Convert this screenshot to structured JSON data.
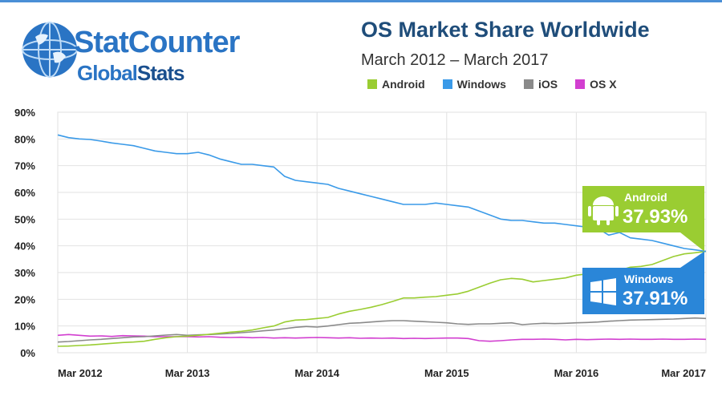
{
  "brand": {
    "name_part1": "Stat",
    "name_part2": "Counter",
    "sub_part1": "Global",
    "sub_part2": "Stats"
  },
  "colors": {
    "android": "#9acd32",
    "windows": "#3a9ae8",
    "ios": "#8a8a8a",
    "osx": "#d23fd0",
    "brand": "#2a74c4"
  },
  "chart_data": {
    "type": "line",
    "title": "OS Market Share Worldwide",
    "subtitle": "March 2012 – March 2017",
    "ylim": [
      0,
      90
    ],
    "y_ticks": [
      "0%",
      "10%",
      "20%",
      "30%",
      "40%",
      "50%",
      "60%",
      "70%",
      "80%",
      "90%"
    ],
    "x_ticks": [
      "Mar 2012",
      "Mar 2013",
      "Mar 2014",
      "Mar 2015",
      "Mar 2016",
      "Mar 2017"
    ],
    "grid": true,
    "legend_position": "top",
    "x": [
      "2012-03",
      "2012-04",
      "2012-05",
      "2012-06",
      "2012-07",
      "2012-08",
      "2012-09",
      "2012-10",
      "2012-11",
      "2012-12",
      "2013-01",
      "2013-02",
      "2013-03",
      "2013-04",
      "2013-05",
      "2013-06",
      "2013-07",
      "2013-08",
      "2013-09",
      "2013-10",
      "2013-11",
      "2013-12",
      "2014-01",
      "2014-02",
      "2014-03",
      "2014-04",
      "2014-05",
      "2014-06",
      "2014-07",
      "2014-08",
      "2014-09",
      "2014-10",
      "2014-11",
      "2014-12",
      "2015-01",
      "2015-02",
      "2015-03",
      "2015-04",
      "2015-05",
      "2015-06",
      "2015-07",
      "2015-08",
      "2015-09",
      "2015-10",
      "2015-11",
      "2015-12",
      "2016-01",
      "2016-02",
      "2016-03",
      "2016-04",
      "2016-05",
      "2016-06",
      "2016-07",
      "2016-08",
      "2016-09",
      "2016-10",
      "2016-11",
      "2016-12",
      "2017-01",
      "2017-02",
      "2017-03"
    ],
    "series": [
      {
        "name": "Android",
        "color": "#9acd32",
        "values": [
          2.4,
          2.5,
          2.7,
          2.9,
          3.2,
          3.5,
          3.8,
          4.0,
          4.3,
          5.0,
          5.6,
          6.0,
          6.2,
          6.5,
          6.9,
          7.3,
          7.7,
          8.0,
          8.5,
          9.3,
          10.0,
          11.5,
          12.2,
          12.4,
          12.8,
          13.2,
          14.5,
          15.5,
          16.2,
          17.0,
          18.0,
          19.2,
          20.5,
          20.5,
          20.8,
          21.0,
          21.5,
          22.0,
          23.0,
          24.5,
          26.0,
          27.3,
          27.8,
          27.5,
          26.5,
          27.0,
          27.5,
          28.0,
          29.0,
          29.5,
          30.0,
          31.0,
          30.8,
          32.0,
          32.3,
          33.0,
          34.5,
          36.0,
          37.0,
          37.4,
          37.93
        ]
      },
      {
        "name": "Windows",
        "color": "#3a9ae8",
        "values": [
          81.5,
          80.5,
          80.0,
          79.8,
          79.2,
          78.5,
          78.0,
          77.5,
          76.5,
          75.5,
          75.0,
          74.5,
          74.5,
          75.0,
          74.0,
          72.5,
          71.5,
          70.5,
          70.5,
          70.0,
          69.5,
          66.0,
          64.5,
          64.0,
          63.5,
          63.0,
          61.5,
          60.5,
          59.5,
          58.5,
          57.5,
          56.5,
          55.5,
          55.5,
          55.5,
          56.0,
          55.5,
          55.0,
          54.5,
          53.0,
          51.5,
          50.0,
          49.5,
          49.5,
          49.0,
          48.5,
          48.5,
          48.0,
          47.5,
          47.0,
          46.5,
          44.0,
          45.0,
          43.0,
          42.5,
          42.0,
          41.0,
          40.0,
          39.0,
          38.5,
          37.91
        ]
      },
      {
        "name": "iOS",
        "color": "#8a8a8a",
        "values": [
          4.0,
          4.2,
          4.5,
          4.8,
          5.0,
          5.3,
          5.6,
          5.9,
          6.0,
          6.3,
          6.6,
          6.8,
          6.5,
          6.7,
          6.8,
          7.0,
          7.2,
          7.5,
          7.8,
          8.2,
          8.5,
          9.0,
          9.5,
          9.8,
          9.6,
          10.0,
          10.5,
          11.0,
          11.2,
          11.5,
          11.8,
          12.0,
          12.0,
          11.8,
          11.6,
          11.4,
          11.2,
          10.8,
          10.6,
          10.8,
          10.8,
          11.0,
          11.2,
          10.5,
          10.8,
          11.0,
          10.9,
          11.0,
          11.2,
          11.3,
          11.5,
          11.8,
          12.0,
          12.2,
          12.3,
          12.4,
          12.5,
          12.6,
          12.8,
          13.0,
          12.8
        ]
      },
      {
        "name": "OS X",
        "color": "#d23fd0",
        "values": [
          6.5,
          6.8,
          6.5,
          6.2,
          6.3,
          6.1,
          6.4,
          6.3,
          6.2,
          6.0,
          6.0,
          6.0,
          6.0,
          5.9,
          6.0,
          5.8,
          5.7,
          5.8,
          5.6,
          5.7,
          5.5,
          5.6,
          5.5,
          5.6,
          5.7,
          5.6,
          5.5,
          5.6,
          5.4,
          5.5,
          5.4,
          5.5,
          5.3,
          5.4,
          5.3,
          5.4,
          5.5,
          5.5,
          5.3,
          4.5,
          4.3,
          4.5,
          4.8,
          5.0,
          5.0,
          5.1,
          5.0,
          4.8,
          5.0,
          4.9,
          5.0,
          5.1,
          5.0,
          5.1,
          5.0,
          5.0,
          5.1,
          5.0,
          5.0,
          5.1,
          5.0
        ]
      }
    ],
    "callouts": [
      {
        "label": "Android",
        "value": "37.93%",
        "color": "#9acd32",
        "series": "Android"
      },
      {
        "label": "Windows",
        "value": "37.91%",
        "color": "#2a86d8",
        "series": "Windows"
      }
    ]
  }
}
